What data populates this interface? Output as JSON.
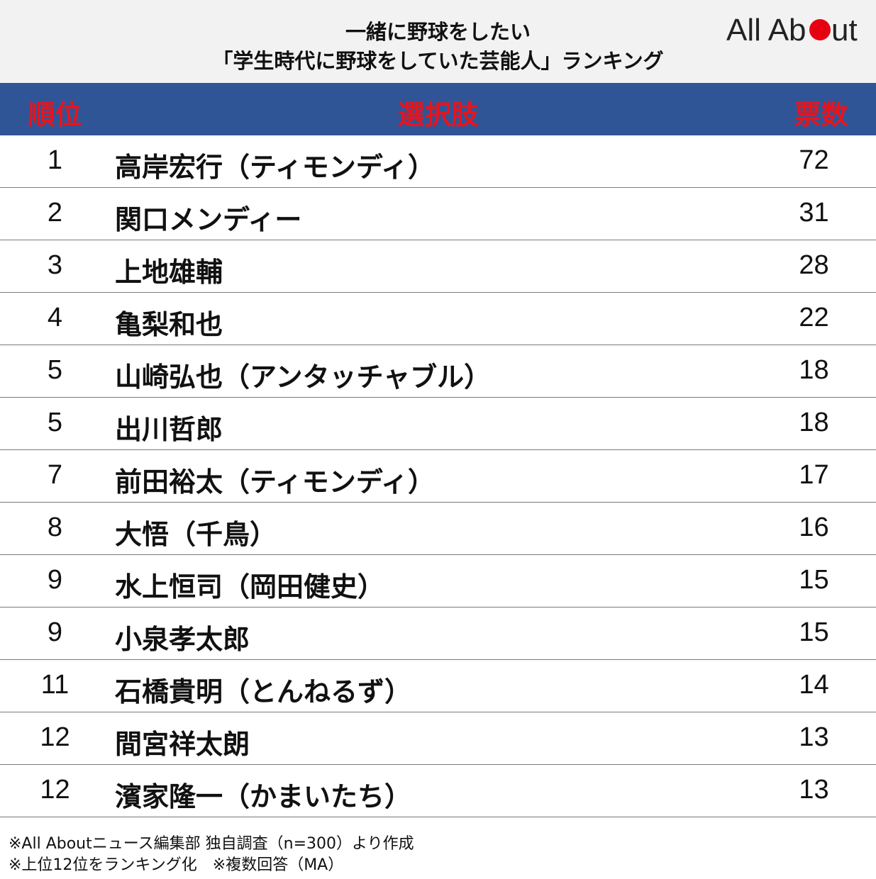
{
  "header": {
    "title_line1": "一緒に野球をしたい",
    "title_line2": "「学生時代に野球をしていた芸能人」ランキング",
    "logo_text_left": "All Ab",
    "logo_text_right": "ut",
    "logo_dot_color": "#e60012"
  },
  "chart_data": {
    "type": "table",
    "columns": [
      "順位",
      "選択肢",
      "票数"
    ],
    "rows": [
      {
        "rank": "1",
        "name": "高岸宏行（ティモンディ）",
        "votes": 72
      },
      {
        "rank": "2",
        "name": "関口メンディー",
        "votes": 31
      },
      {
        "rank": "3",
        "name": "上地雄輔",
        "votes": 28
      },
      {
        "rank": "4",
        "name": "亀梨和也",
        "votes": 22
      },
      {
        "rank": "5",
        "name": "山崎弘也（アンタッチャブル）",
        "votes": 18
      },
      {
        "rank": "5",
        "name": "出川哲郎",
        "votes": 18
      },
      {
        "rank": "7",
        "name": "前田裕太（ティモンディ）",
        "votes": 17
      },
      {
        "rank": "8",
        "name": "大悟（千鳥）",
        "votes": 16
      },
      {
        "rank": "9",
        "name": "水上恒司（岡田健史）",
        "votes": 15
      },
      {
        "rank": "9",
        "name": "小泉孝太郎",
        "votes": 15
      },
      {
        "rank": "11",
        "name": "石橋貴明（とんねるず）",
        "votes": 14
      },
      {
        "rank": "12",
        "name": "間宮祥太朗",
        "votes": 13
      },
      {
        "rank": "12",
        "name": "濱家隆一（かまいたち）",
        "votes": 13
      }
    ]
  },
  "notes": {
    "line1": "※All Aboutニュース編集部 独自調査（n=300）より作成",
    "line2": "※上位12位をランキング化　※複数回答（MA）"
  },
  "colors": {
    "header_band": "#2f5597",
    "header_text": "#e8141c"
  }
}
